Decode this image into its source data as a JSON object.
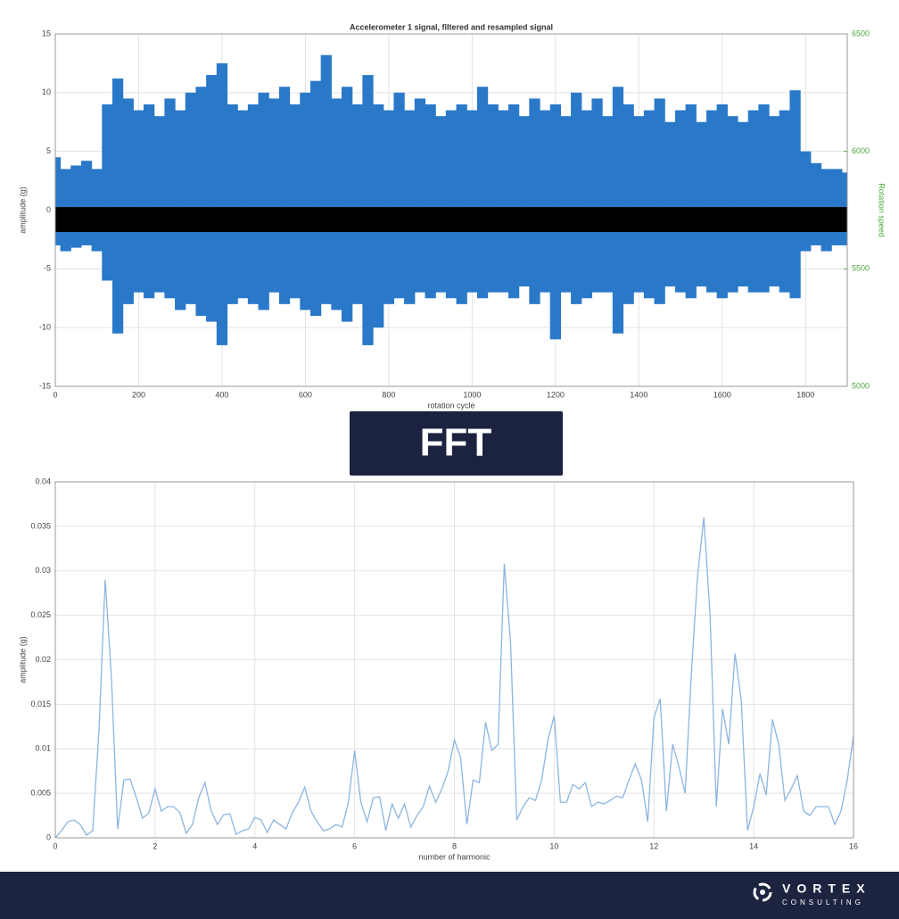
{
  "chart_data": [
    {
      "type": "range",
      "title": "Accelerometer 1 signal, filtered and resampled signal",
      "x_label": "rotation cycle",
      "y_label": "amplitude (g)",
      "y2_label": "Rotation speed",
      "x": [
        0,
        25,
        50,
        75,
        100,
        125,
        150,
        175,
        200,
        225,
        250,
        275,
        300,
        325,
        350,
        375,
        400,
        425,
        450,
        475,
        500,
        525,
        550,
        575,
        600,
        625,
        650,
        675,
        700,
        725,
        750,
        775,
        800,
        825,
        850,
        875,
        900,
        925,
        950,
        975,
        1000,
        1025,
        1050,
        1075,
        1100,
        1125,
        1150,
        1175,
        1200,
        1225,
        1250,
        1275,
        1300,
        1325,
        1350,
        1375,
        1400,
        1425,
        1450,
        1475,
        1500,
        1525,
        1550,
        1575,
        1600,
        1625,
        1650,
        1675,
        1700,
        1725,
        1750,
        1775,
        1800,
        1825,
        1850,
        1875,
        1900
      ],
      "series": [
        {
          "color": "#2a79c9",
          "values": [
            4.5,
            3.5,
            3.8,
            4.2,
            3.5,
            9,
            11.2,
            9.5,
            8.5,
            9,
            8,
            9.5,
            8.5,
            10,
            10.5,
            11.5,
            12.5,
            9,
            8.5,
            9,
            10,
            9.5,
            10.5,
            9,
            10,
            11,
            13.2,
            9.5,
            10.5,
            9,
            11.5,
            9,
            8.5,
            10,
            8.5,
            9.5,
            9,
            8,
            8.5,
            9,
            8.5,
            10.5,
            9,
            8.5,
            9,
            8,
            9.5,
            8.5,
            9,
            8,
            10,
            8.5,
            9.5,
            8,
            10.5,
            9,
            8,
            8.5,
            9.5,
            7.5,
            8.5,
            9,
            7.5,
            8.5,
            9,
            8,
            7.5,
            8.5,
            9,
            8,
            8.5,
            10.2,
            5,
            4,
            3.5,
            3.5,
            3.2
          ]
        },
        {
          "color": "#2a79c9",
          "values": [
            -3,
            -3.5,
            -3.2,
            -3,
            -3.5,
            -6,
            -10.5,
            -8,
            -7,
            -7.5,
            -7,
            -7.5,
            -8.5,
            -8,
            -9,
            -9.5,
            -11.5,
            -8,
            -7.5,
            -8,
            -8.5,
            -7,
            -8,
            -7.5,
            -8.5,
            -9,
            -8,
            -8.5,
            -9.5,
            -8,
            -11.5,
            -10,
            -8,
            -7.5,
            -8,
            -7,
            -7.5,
            -7,
            -7.5,
            -8,
            -7,
            -7.5,
            -7,
            -7,
            -7.5,
            -6.5,
            -8,
            -7,
            -11,
            -7,
            -8,
            -7.5,
            -7,
            -7,
            -10.5,
            -8,
            -7,
            -7.5,
            -8,
            -6.5,
            -7,
            -7.5,
            -6.5,
            -7,
            -7.5,
            -7,
            -6.5,
            -7,
            -7,
            -6.5,
            -7,
            -7.5,
            -3.5,
            -3,
            -3.5,
            -3,
            -3
          ]
        },
        {
          "color": "#000000",
          "axis": "y2",
          "values": [
            5763,
            5763,
            5763,
            5763,
            5763,
            5763,
            5763,
            5763,
            5763,
            5763,
            5763,
            5763,
            5763,
            5763,
            5763,
            5763,
            5763,
            5763,
            5763,
            5763,
            5763,
            5763,
            5763,
            5763,
            5763,
            5763,
            5763,
            5763,
            5763,
            5763,
            5763,
            5763,
            5763,
            5763,
            5763,
            5763,
            5763,
            5763,
            5763,
            5763,
            5763,
            5763,
            5763,
            5763,
            5763,
            5763,
            5763,
            5763,
            5763,
            5763,
            5763,
            5763,
            5763,
            5763,
            5763,
            5763,
            5763,
            5763,
            5763,
            5763,
            5763,
            5763,
            5763,
            5763,
            5763,
            5763,
            5763,
            5763,
            5763,
            5763,
            5763,
            5763,
            5763,
            5763,
            5763,
            5763,
            5763
          ]
        },
        {
          "color": "#000000",
          "axis": "y2",
          "values": [
            5657,
            5657,
            5657,
            5657,
            5657,
            5657,
            5657,
            5657,
            5657,
            5657,
            5657,
            5657,
            5657,
            5657,
            5657,
            5657,
            5657,
            5657,
            5657,
            5657,
            5657,
            5657,
            5657,
            5657,
            5657,
            5657,
            5657,
            5657,
            5657,
            5657,
            5657,
            5657,
            5657,
            5657,
            5657,
            5657,
            5657,
            5657,
            5657,
            5657,
            5657,
            5657,
            5657,
            5657,
            5657,
            5657,
            5657,
            5657,
            5657,
            5657,
            5657,
            5657,
            5657,
            5657,
            5657,
            5657,
            5657,
            5657,
            5657,
            5657,
            5657,
            5657,
            5657,
            5657,
            5657,
            5657,
            5657,
            5657,
            5657,
            5657,
            5657,
            5657,
            5657,
            5657,
            5657,
            5657,
            5657
          ]
        }
      ],
      "xlim": [
        0,
        1900
      ],
      "xticks": [
        0,
        200,
        400,
        600,
        800,
        1000,
        1200,
        1400,
        1600,
        1800
      ],
      "ylim": [
        -15,
        15
      ],
      "yticks": [
        -15,
        -10,
        -5,
        0,
        5,
        10,
        15
      ],
      "y2lim": [
        5000,
        6500
      ],
      "y2ticks": [
        5000,
        5500,
        6000,
        6500
      ],
      "grid": true
    },
    {
      "type": "line",
      "x_label": "number of harmonic",
      "y_label": "amplitude (g)",
      "x": [
        0,
        0.125,
        0.25,
        0.375,
        0.5,
        0.625,
        0.75,
        0.875,
        1,
        1.125,
        1.25,
        1.375,
        1.5,
        1.625,
        1.75,
        1.875,
        2,
        2.125,
        2.25,
        2.375,
        2.5,
        2.625,
        2.75,
        2.875,
        3,
        3.125,
        3.25,
        3.375,
        3.5,
        3.625,
        3.75,
        3.875,
        4,
        4.125,
        4.25,
        4.375,
        4.5,
        4.625,
        4.75,
        4.875,
        5,
        5.125,
        5.25,
        5.375,
        5.5,
        5.625,
        5.75,
        5.875,
        6,
        6.125,
        6.25,
        6.375,
        6.5,
        6.625,
        6.75,
        6.875,
        7,
        7.125,
        7.25,
        7.375,
        7.5,
        7.625,
        7.75,
        7.875,
        8,
        8.125,
        8.25,
        8.375,
        8.5,
        8.625,
        8.75,
        8.875,
        9,
        9.125,
        9.25,
        9.375,
        9.5,
        9.625,
        9.75,
        9.875,
        10,
        10.125,
        10.25,
        10.375,
        10.5,
        10.625,
        10.75,
        10.875,
        11,
        11.125,
        11.25,
        11.375,
        11.5,
        11.625,
        11.75,
        11.875,
        12,
        12.125,
        12.25,
        12.375,
        12.5,
        12.625,
        12.75,
        12.875,
        13,
        13.125,
        13.25,
        13.375,
        13.5,
        13.625,
        13.75,
        13.875,
        14,
        14.125,
        14.25,
        14.375,
        14.5,
        14.625,
        14.75,
        14.875,
        15,
        15.125,
        15.25,
        15.375,
        15.5,
        15.625,
        15.75,
        15.875,
        16
      ],
      "series": [
        {
          "color": "#8db5df",
          "values": [
            0,
            0.0008,
            0.0018,
            0.002,
            0.0015,
            0.0003,
            0.0008,
            0.012,
            0.029,
            0.018,
            0.001,
            0.0065,
            0.0066,
            0.0045,
            0.0022,
            0.0028,
            0.0055,
            0.003,
            0.0035,
            0.0035,
            0.0028,
            0.0005,
            0.0015,
            0.0045,
            0.0062,
            0.003,
            0.0015,
            0.0026,
            0.0027,
            0.0004,
            0.0008,
            0.001,
            0.0023,
            0.002,
            0.0006,
            0.002,
            0.0015,
            0.001,
            0.0028,
            0.004,
            0.0057,
            0.003,
            0.0018,
            0.0008,
            0.001,
            0.0015,
            0.0012,
            0.004,
            0.0098,
            0.004,
            0.0018,
            0.0045,
            0.0046,
            0.0008,
            0.0038,
            0.0022,
            0.0038,
            0.0012,
            0.0025,
            0.0035,
            0.0058,
            0.004,
            0.0055,
            0.0075,
            0.011,
            0.009,
            0.0015,
            0.0065,
            0.0062,
            0.013,
            0.0098,
            0.0105,
            0.0308,
            0.022,
            0.002,
            0.0035,
            0.0045,
            0.0042,
            0.0065,
            0.011,
            0.0137,
            0.004,
            0.004,
            0.006,
            0.0055,
            0.0062,
            0.0035,
            0.004,
            0.0038,
            0.0042,
            0.0047,
            0.0045,
            0.0065,
            0.0083,
            0.0065,
            0.0018,
            0.0135,
            0.0156,
            0.003,
            0.0105,
            0.008,
            0.005,
            0.0185,
            0.0295,
            0.036,
            0.025,
            0.0035,
            0.0145,
            0.0105,
            0.0207,
            0.0155,
            0.0008,
            0.0035,
            0.0072,
            0.0048,
            0.0133,
            0.0105,
            0.0042,
            0.0055,
            0.007,
            0.003,
            0.0025,
            0.0035,
            0.0035,
            0.0035,
            0.0015,
            0.003,
            0.0065,
            0.0115
          ]
        }
      ],
      "xlim": [
        0,
        16
      ],
      "xticks": [
        0,
        2,
        4,
        6,
        8,
        10,
        12,
        14,
        16
      ],
      "ylim": [
        0,
        0.04
      ],
      "yticks": [
        0,
        0.005,
        0.01,
        0.015,
        0.02,
        0.025,
        0.03,
        0.035,
        0.04
      ],
      "grid": true
    }
  ],
  "banner": "FFT",
  "footer": {
    "brand": "VORTEX",
    "tagline": "CONSULTING"
  }
}
